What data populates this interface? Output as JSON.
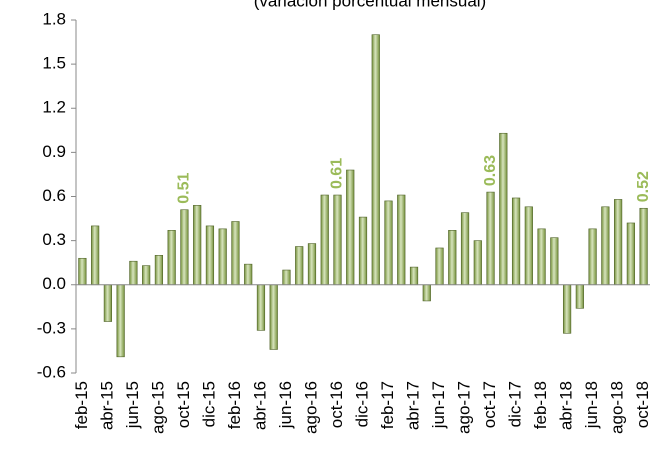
{
  "chart_data": {
    "type": "bar",
    "subtitle": "(variación porcentual mensual)",
    "categories": [
      "feb-15",
      null,
      "abr-15",
      null,
      "jun-15",
      null,
      "ago-15",
      null,
      "oct-15",
      null,
      "dic-15",
      null,
      "feb-16",
      null,
      "abr-16",
      null,
      "jun-16",
      null,
      "ago-16",
      null,
      "oct-16",
      null,
      "dic-16",
      null,
      "feb-17",
      null,
      "abr-17",
      null,
      "jun-17",
      null,
      "ago-17",
      null,
      "oct-17",
      null,
      "dic-17",
      null,
      "feb-18",
      null,
      "abr-18",
      null,
      "jun-18",
      null,
      "ago-18",
      null,
      "oct-18"
    ],
    "values": [
      0.18,
      0.4,
      -0.25,
      -0.49,
      0.16,
      0.13,
      0.2,
      0.37,
      0.51,
      0.54,
      0.4,
      0.38,
      0.43,
      0.14,
      -0.31,
      -0.44,
      0.1,
      0.26,
      0.28,
      0.61,
      0.61,
      0.78,
      0.46,
      1.7,
      0.57,
      0.61,
      0.12,
      -0.11,
      0.25,
      0.37,
      0.49,
      0.3,
      0.63,
      1.03,
      0.59,
      0.53,
      0.38,
      0.32,
      -0.33,
      -0.16,
      0.38,
      0.53,
      0.58,
      0.42,
      0.52
    ],
    "value_labels": [
      null,
      null,
      null,
      null,
      null,
      null,
      null,
      null,
      "0.51",
      null,
      null,
      null,
      null,
      null,
      null,
      null,
      null,
      null,
      null,
      null,
      "0.61",
      null,
      null,
      null,
      null,
      null,
      null,
      null,
      null,
      null,
      null,
      null,
      "0.63",
      null,
      null,
      null,
      null,
      null,
      null,
      null,
      null,
      null,
      null,
      null,
      "0.52"
    ],
    "color": "#9bbb59",
    "ylim": [
      -0.6,
      1.8
    ],
    "yticks": [
      -0.6,
      -0.3,
      {
        "value": 0,
        "label": "0.0"
      },
      0.3,
      0.6,
      0.9,
      1.2,
      1.5,
      1.8
    ]
  }
}
